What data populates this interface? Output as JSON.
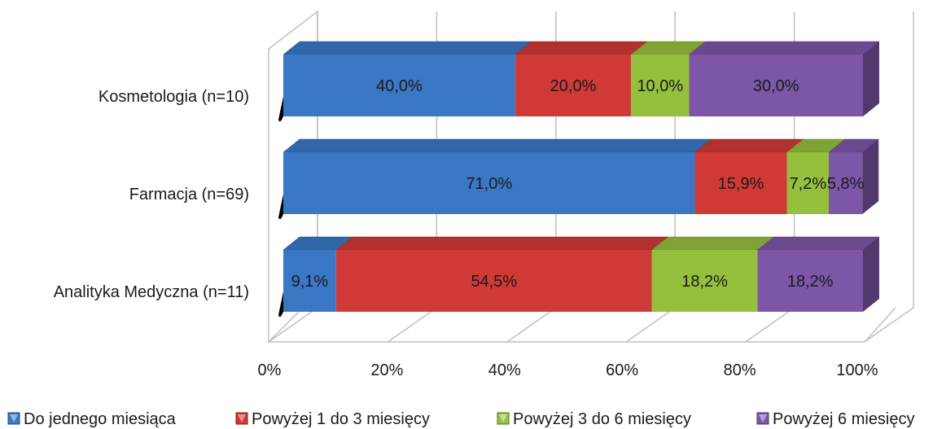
{
  "chart_data": {
    "type": "bar",
    "orientation": "horizontal",
    "stacked": "100%",
    "style": "3d",
    "categories": [
      "Kosmetologia (n=10)",
      "Farmacja (n=69)",
      "Analityka Medyczna (n=11)"
    ],
    "series": [
      {
        "name": "Do jednego miesiąca",
        "color": "#3a78c6",
        "values": [
          40.0,
          71.0,
          9.1
        ],
        "labels": [
          "40,0%",
          "71,0%",
          "9,1%"
        ]
      },
      {
        "name": "Powyżej 1 do 3 miesięcy",
        "color": "#cf3a36",
        "values": [
          20.0,
          15.9,
          54.5
        ],
        "labels": [
          "20,0%",
          "15,9%",
          "54,5%"
        ]
      },
      {
        "name": "Powyżej 3 do 6 miesięcy",
        "color": "#95c03d",
        "values": [
          10.0,
          7.2,
          18.2
        ],
        "labels": [
          "10,0%",
          "7,2%",
          "18,2%"
        ]
      },
      {
        "name": "Powyżej 6 miesięcy",
        "color": "#7d56a8",
        "values": [
          30.0,
          5.8,
          18.2
        ],
        "labels": [
          "30,0%",
          "5,8%",
          "18,2%"
        ]
      }
    ],
    "xlim": [
      0,
      100
    ],
    "x_ticks": [
      "0%",
      "20%",
      "40%",
      "60%",
      "80%",
      "100%"
    ],
    "grid": true,
    "legend_position": "bottom"
  }
}
